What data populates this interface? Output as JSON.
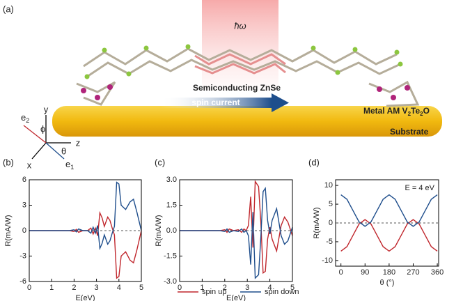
{
  "panel_labels": [
    "(a)",
    "(b)",
    "(c)",
    "(d)"
  ],
  "schematic": {
    "photon": "ħω",
    "layer": "Semiconducting ZnSe",
    "arrow": "spin current",
    "metal": "Metal AM V",
    "metal_sub1": "2",
    "metal_mid": "Te",
    "metal_sub2": "2",
    "metal_end": "O",
    "substrate": "Substrate",
    "axes": {
      "y": "y",
      "z": "z",
      "x": "x",
      "e": "e",
      "e1_sub": "1",
      "e2_sub": "2",
      "phi": "ϕ",
      "theta": "θ"
    }
  },
  "chart_data": [
    {
      "type": "line",
      "x": [
        0,
        1,
        1.8,
        2.0,
        2.1,
        2.2,
        2.4,
        2.6,
        2.75,
        2.85,
        2.95,
        3.05,
        3.15,
        3.25,
        3.35,
        3.5,
        3.6,
        3.7,
        3.8,
        3.9,
        4.0,
        4.1,
        4.3,
        4.5,
        4.65,
        4.8,
        5.0
      ],
      "series": [
        {
          "color": "#c0272d",
          "values": [
            0,
            0,
            0,
            -0.1,
            0.15,
            -0.2,
            0,
            0,
            0.3,
            -0.4,
            0.3,
            -0.6,
            2.1,
            1.5,
            0.5,
            1.6,
            1.2,
            0.3,
            -0.5,
            -5.6,
            -5.4,
            -3,
            -2.5,
            -3.5,
            -3.8,
            -2.3,
            0
          ]
        },
        {
          "color": "#1f4e8c",
          "values": [
            0,
            0,
            0,
            0.1,
            -0.15,
            0.2,
            0,
            0,
            -0.3,
            0.4,
            -0.3,
            0.6,
            -2.1,
            -1.5,
            -0.5,
            -1.6,
            -1.2,
            -0.3,
            0.5,
            5.7,
            5.5,
            3,
            2.5,
            3.4,
            3.7,
            2.2,
            0
          ]
        }
      ],
      "xlim": [
        0,
        5
      ],
      "ylim": [
        -6,
        6
      ],
      "xticks": [
        0,
        1,
        2,
        3,
        4,
        5
      ],
      "yticks": [
        -6,
        -3,
        0,
        3,
        6
      ],
      "xlabel": "E(eV)",
      "ylabel": "R(mA/W)",
      "zero_line": true
    },
    {
      "type": "line",
      "x": [
        0,
        1,
        1.8,
        2.0,
        2.1,
        2.2,
        2.4,
        2.6,
        2.75,
        2.85,
        2.95,
        3.05,
        3.15,
        3.25,
        3.35,
        3.5,
        3.6,
        3.7,
        3.8,
        3.9,
        4.0,
        4.1,
        4.3,
        4.5,
        4.65,
        4.8,
        5.0
      ],
      "series": [
        {
          "name": "spin up",
          "color": "#c0272d",
          "values": [
            0,
            0,
            0,
            0.05,
            -0.1,
            0.1,
            0,
            0.05,
            -0.1,
            0.1,
            0,
            0.3,
            2.0,
            -1.0,
            2.9,
            2.6,
            0.5,
            -2.5,
            -2.4,
            -0.5,
            0.2,
            -0.5,
            -1.2,
            0.3,
            0.8,
            0.5,
            -0.3
          ]
        },
        {
          "name": "spin down",
          "color": "#1f4e8c",
          "values": [
            0,
            0,
            0,
            -0.05,
            0.1,
            -0.1,
            0,
            -0.05,
            0.1,
            -0.1,
            0,
            -0.3,
            -2.0,
            1.1,
            -2.8,
            -2.6,
            -0.4,
            2.3,
            2.5,
            0.6,
            -0.2,
            0.6,
            1.3,
            -0.3,
            -0.8,
            -0.6,
            0.2
          ]
        }
      ],
      "xlim": [
        0,
        5
      ],
      "ylim": [
        -3,
        3
      ],
      "xticks": [
        0,
        1,
        2,
        3,
        4,
        5
      ],
      "yticks": [
        {
          "value": -3,
          "label": "-3.0"
        },
        {
          "value": -1.5,
          "label": "-1.5"
        },
        {
          "value": 0,
          "label": "0.0"
        },
        {
          "value": 1.5,
          "label": "1.5"
        },
        {
          "value": 3,
          "label": "3.0"
        }
      ],
      "xlabel": "E(eV)",
      "ylabel": "R(mA/W)",
      "zero_line": true
    },
    {
      "type": "line",
      "x": [
        0,
        22.5,
        45,
        67.5,
        90,
        112.5,
        135,
        157.5,
        180,
        202.5,
        225,
        247.5,
        270,
        292.5,
        315,
        337.5,
        360
      ],
      "series": [
        {
          "color": "#c0272d",
          "values": [
            -7.5,
            -6.3,
            -3.3,
            -0.3,
            0.9,
            -0.3,
            -3.3,
            -6.3,
            -7.5,
            -6.3,
            -3.3,
            -0.3,
            0.9,
            -0.3,
            -3.3,
            -6.3,
            -7.5
          ]
        },
        {
          "color": "#1f4e8c",
          "values": [
            7.5,
            6.3,
            3.3,
            0.3,
            -0.9,
            0.3,
            3.3,
            6.3,
            7.5,
            6.3,
            3.3,
            0.3,
            -0.9,
            0.3,
            3.3,
            6.3,
            7.5
          ]
        }
      ],
      "xlim": [
        -20,
        365
      ],
      "ylim": [
        -11.5,
        11.5
      ],
      "xticks": [
        0,
        90,
        180,
        270,
        360
      ],
      "yticks": [
        -10,
        -5,
        0,
        5,
        10
      ],
      "xlabel": "θ (°)",
      "ylabel": "R(mA/W)",
      "zero_line": true,
      "annotation": "E = 4 eV"
    }
  ]
}
